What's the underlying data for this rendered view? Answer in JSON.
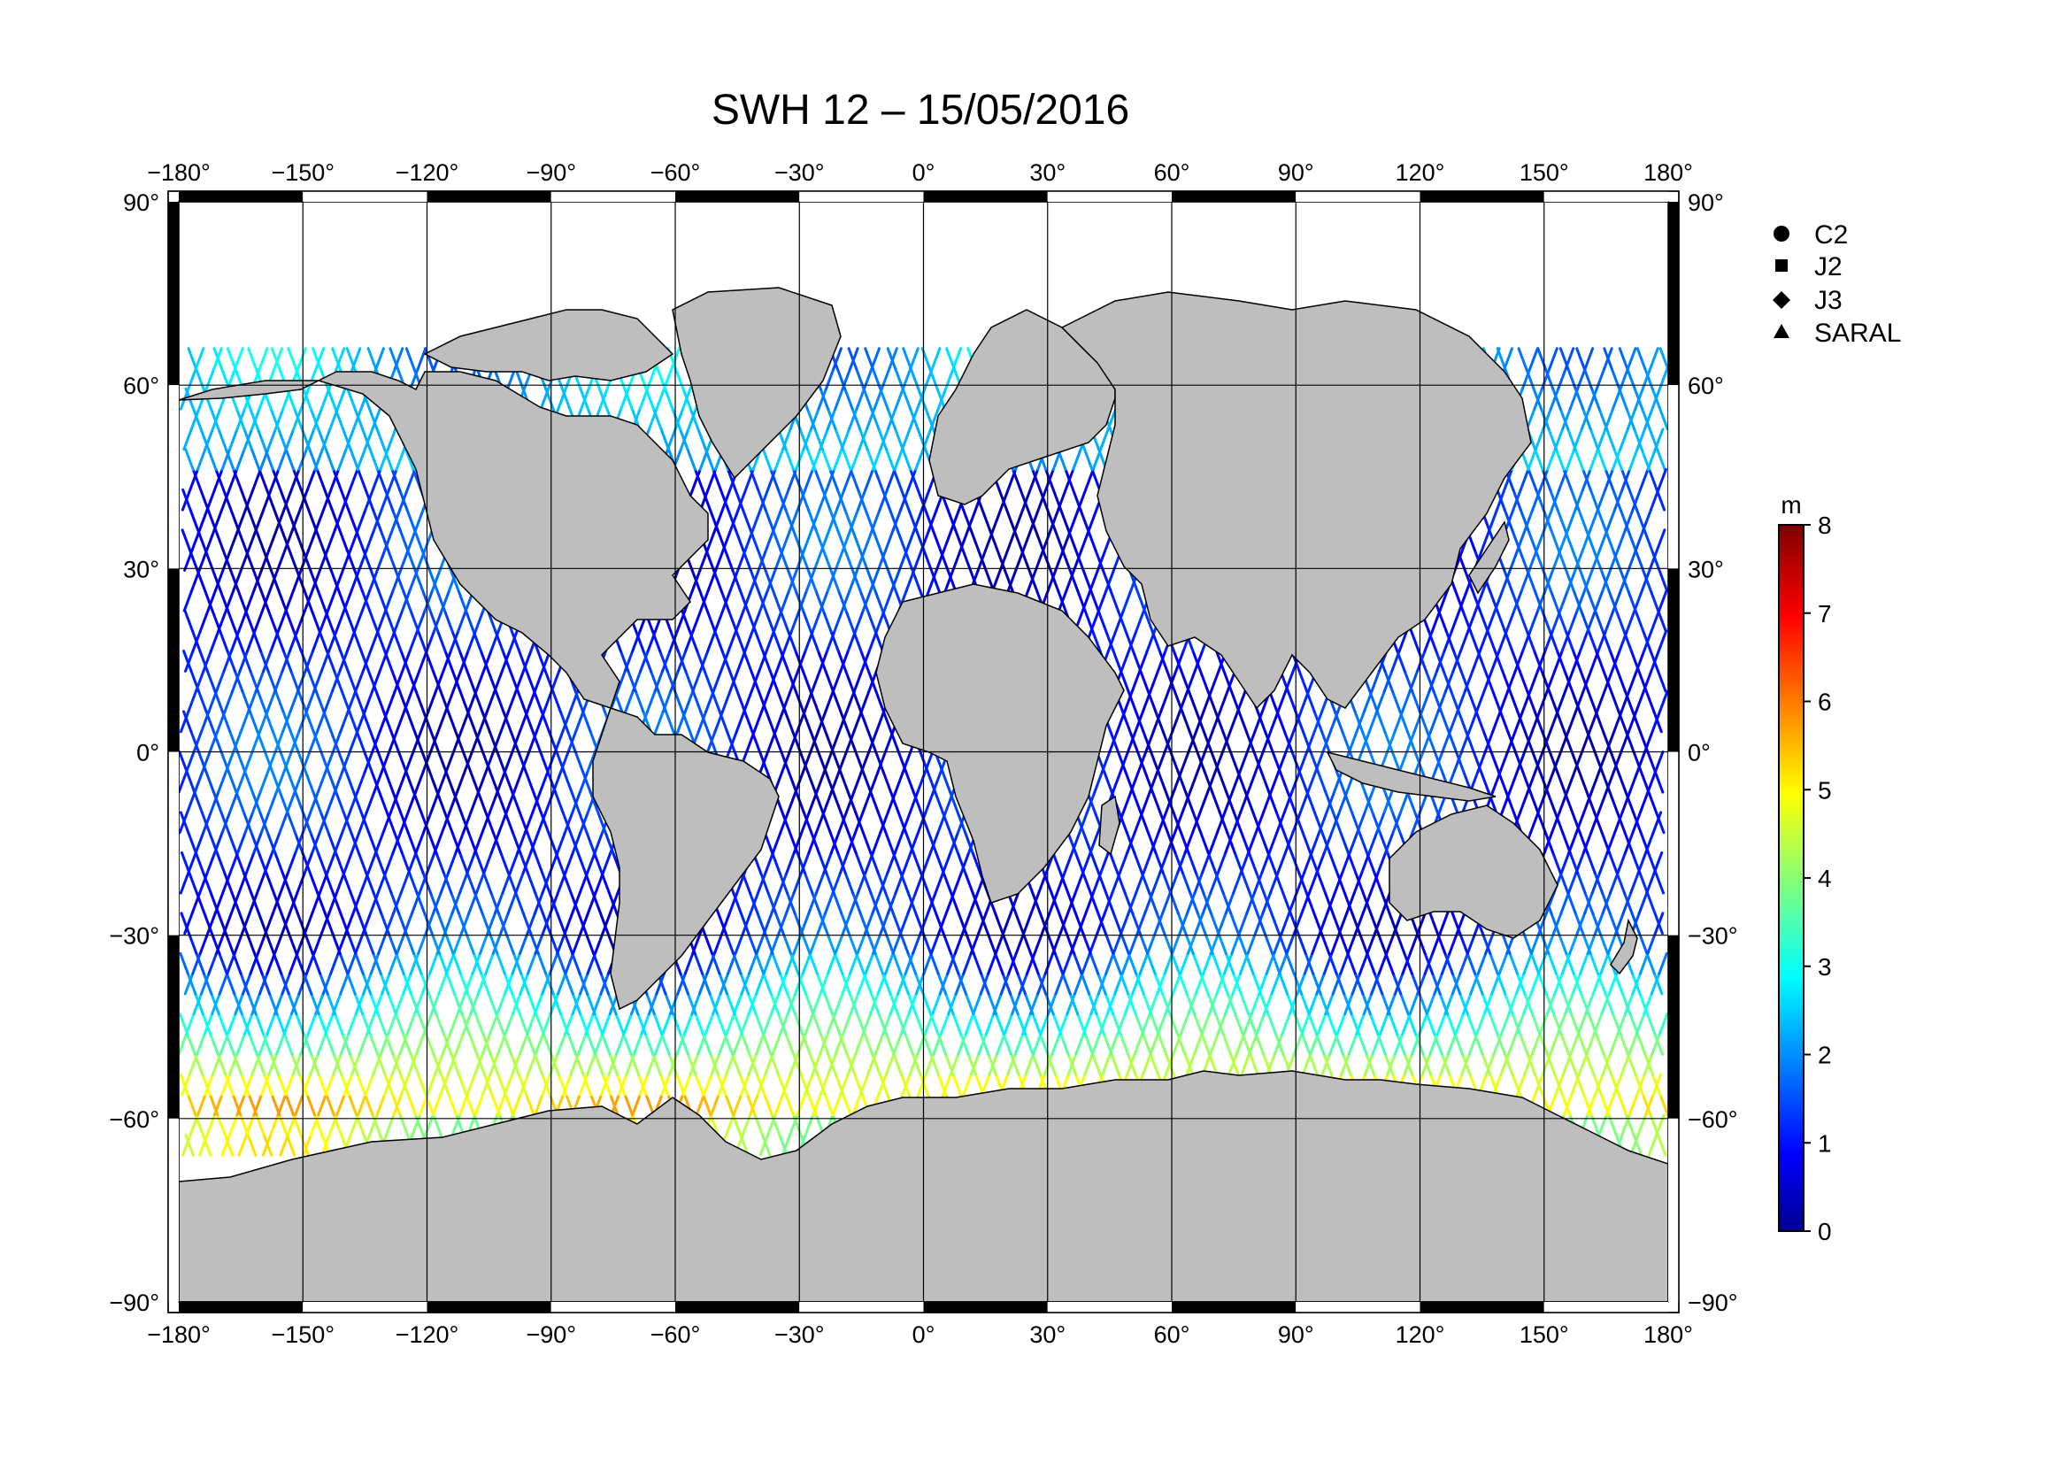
{
  "map": {
    "title": "SWH 12 – 15/05/2016",
    "projection": "equirectangular",
    "extent": {
      "lon": [
        -180,
        180
      ],
      "lat": [
        -90,
        90
      ]
    },
    "graticule_step_deg": 30,
    "lon_ticks": [
      -180,
      -150,
      -120,
      -90,
      -60,
      -30,
      0,
      30,
      60,
      90,
      120,
      150,
      180
    ],
    "lat_ticks": [
      90,
      60,
      30,
      0,
      -30,
      -60,
      -90
    ],
    "degree_symbol": "°",
    "land_color": "#bebebe",
    "coast_color": "#000000",
    "frame_colors": [
      "#000000",
      "#ffffff"
    ]
  },
  "legend": {
    "items": [
      {
        "label": "C2",
        "symbol": "circle"
      },
      {
        "label": "J2",
        "symbol": "square"
      },
      {
        "label": "J3",
        "symbol": "diamond"
      },
      {
        "label": "SARAL",
        "symbol": "triangle"
      }
    ]
  },
  "colorbar": {
    "unit": "m",
    "min": 0,
    "max": 8,
    "ticks": [
      0,
      1,
      2,
      3,
      4,
      5,
      6,
      7,
      8
    ],
    "colormap": "jet",
    "stops": [
      "#00008f",
      "#0000ff",
      "#00ffff",
      "#ffff00",
      "#ff0000",
      "#800000"
    ]
  },
  "tracks": {
    "quantity": "significant wave height",
    "unit": "m",
    "note_colors": "color scale 0–8 m"
  }
}
